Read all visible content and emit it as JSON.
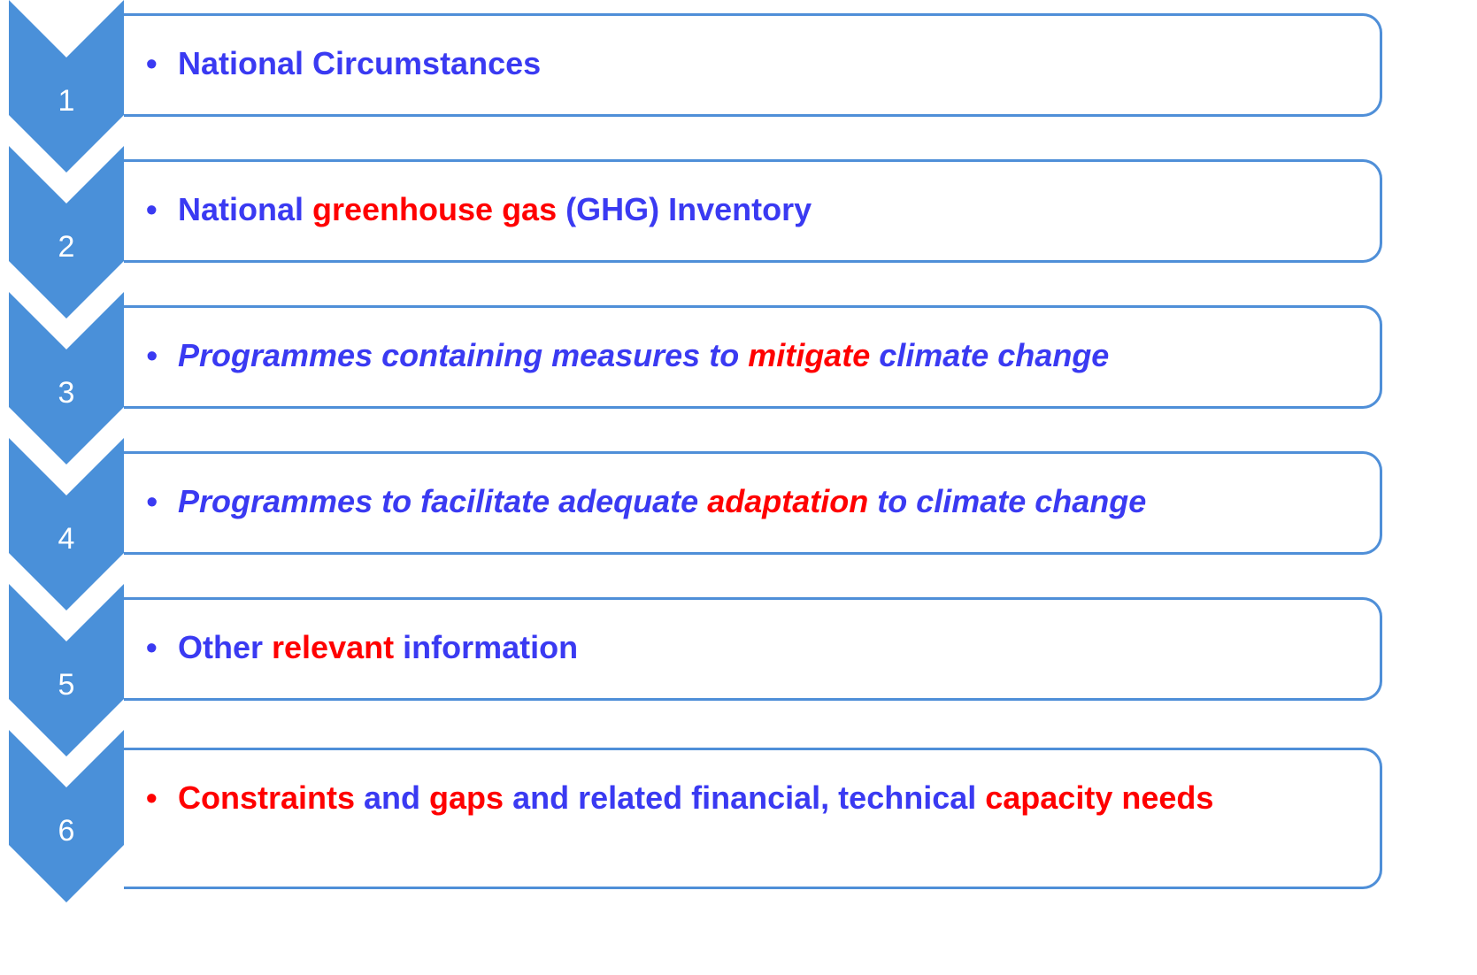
{
  "bullet": "•",
  "items": [
    {
      "number": "1",
      "italic": false,
      "segments": [
        {
          "text": "National Circumstances",
          "color": "#3a3af2"
        }
      ]
    },
    {
      "number": "2",
      "italic": false,
      "segments": [
        {
          "text": "National ",
          "color": "#3a3af2"
        },
        {
          "text": "greenhouse gas",
          "color": "#ff0000"
        },
        {
          "text": " (GHG) Inventory",
          "color": "#3a3af2"
        }
      ]
    },
    {
      "number": "3",
      "italic": true,
      "segments": [
        {
          "text": "Programmes containing measures to ",
          "color": "#3a3af2"
        },
        {
          "text": "mitigate",
          "color": "#ff0000"
        },
        {
          "text": " climate change",
          "color": "#3a3af2"
        }
      ]
    },
    {
      "number": "4",
      "italic": true,
      "segments": [
        {
          "text": "Programmes to facilitate adequate ",
          "color": "#3a3af2"
        },
        {
          "text": "adaptation",
          "color": "#ff0000"
        },
        {
          "text": " to climate change",
          "color": "#3a3af2"
        }
      ]
    },
    {
      "number": "5",
      "italic": false,
      "segments": [
        {
          "text": "Other ",
          "color": "#3a3af2"
        },
        {
          "text": "relevant",
          "color": "#ff0000"
        },
        {
          "text": " information",
          "color": "#3a3af2"
        }
      ]
    },
    {
      "number": "6",
      "italic": false,
      "segments": [
        {
          "text": "Constraints",
          "color": "#ff0000"
        },
        {
          "text": " and ",
          "color": "#3a3af2"
        },
        {
          "text": "gaps",
          "color": "#ff0000"
        },
        {
          "text": " and related financial, technical ",
          "color": "#3a3af2"
        },
        {
          "text": "capacity needs",
          "color": "#ff0000"
        }
      ]
    }
  ]
}
